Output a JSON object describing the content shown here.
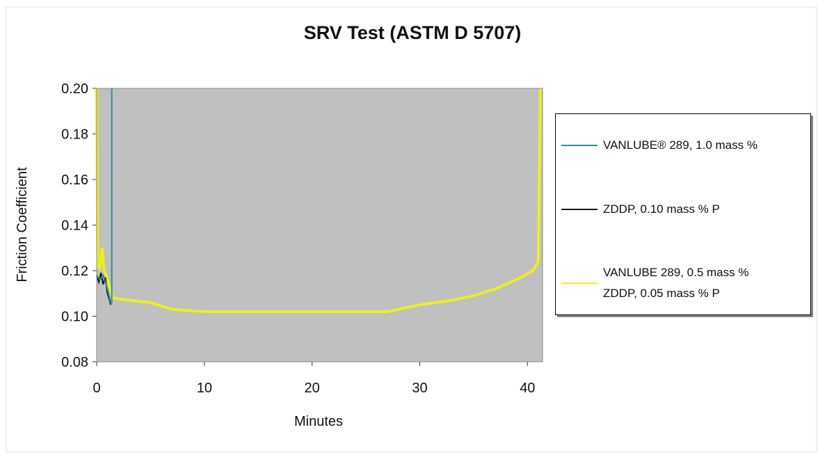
{
  "chart_data": {
    "type": "line",
    "title": "SRV Test (ASTM D 5707)",
    "xlabel": "Minutes",
    "ylabel": "Friction Coefficient",
    "xlim": [
      0,
      41.4
    ],
    "xticks": [
      0,
      10,
      20,
      30,
      40
    ],
    "ylim": [
      0.08,
      0.2
    ],
    "yticks": [
      {
        "value": 0.08,
        "label": "0.08"
      },
      {
        "value": 0.1,
        "label": "0.10"
      },
      {
        "value": 0.12,
        "label": "0.12"
      },
      {
        "value": 0.14,
        "label": "0.14"
      },
      {
        "value": 0.16,
        "label": "0.16"
      },
      {
        "value": 0.18,
        "label": "0.18"
      },
      {
        "value": 0.2,
        "label": "0.20"
      }
    ],
    "grid": false,
    "series": [
      {
        "name": "VANLUBE® 289, 1.0 mass %",
        "color": "#2f8e98",
        "x": [
          0,
          0.3,
          0.6,
          1.0,
          1.3,
          1.4,
          1.4
        ],
        "values": [
          0.118,
          0.116,
          0.118,
          0.112,
          0.106,
          0.106,
          0.2
        ]
      },
      {
        "name": "ZDDP, 0.10 mass % P",
        "color": "#151515",
        "x": [
          0,
          0.2,
          0.4,
          0.6,
          0.8,
          1.0,
          1.2,
          1.3
        ],
        "values": [
          0.118,
          0.115,
          0.119,
          0.114,
          0.117,
          0.11,
          0.107,
          0.105
        ]
      },
      {
        "name": "VANLUBE 289, 0.5 mass %\nZDDP, 0.05 mass % P",
        "color": "#eeee22",
        "x": [
          0,
          0.1,
          0.3,
          0.5,
          0.7,
          1.0,
          1.5,
          3,
          5,
          7,
          10,
          15,
          20,
          25,
          27,
          28,
          30,
          33,
          35,
          37,
          39,
          40.5,
          41,
          41.2
        ],
        "values": [
          0.2,
          0.122,
          0.121,
          0.13,
          0.12,
          0.116,
          0.108,
          0.107,
          0.106,
          0.103,
          0.102,
          0.102,
          0.102,
          0.102,
          0.102,
          0.103,
          0.105,
          0.107,
          0.109,
          0.112,
          0.116,
          0.12,
          0.124,
          0.2
        ]
      }
    ]
  }
}
